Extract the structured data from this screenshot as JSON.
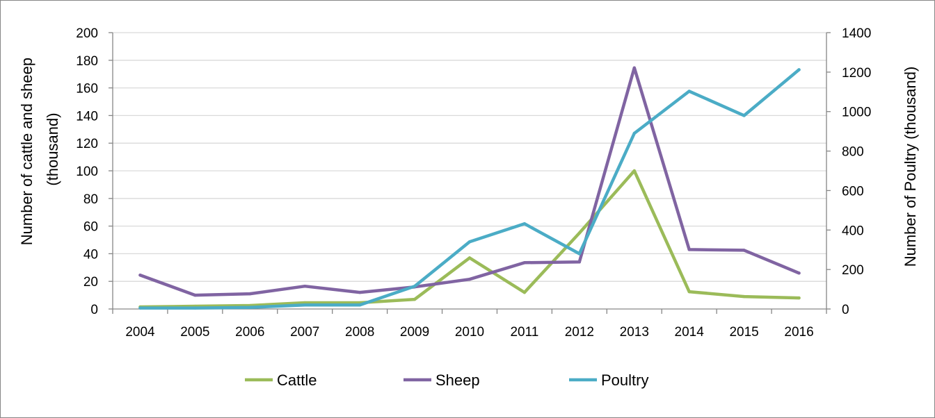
{
  "chart_data": {
    "type": "line",
    "categories": [
      "2004",
      "2005",
      "2006",
      "2007",
      "2008",
      "2009",
      "2010",
      "2011",
      "2012",
      "2013",
      "2014",
      "2015",
      "2016"
    ],
    "series": [
      {
        "name": "Cattle",
        "axis": "left",
        "color": "#9BBB59",
        "values": [
          1.5,
          2,
          2.5,
          4.5,
          4.5,
          7,
          37,
          12,
          55,
          100,
          12.5,
          9,
          8
        ]
      },
      {
        "name": "Sheep",
        "axis": "left",
        "color": "#8064A2",
        "values": [
          24.5,
          10,
          11,
          16.5,
          12,
          16,
          21.5,
          33.5,
          34,
          174.5,
          43,
          42.5,
          26
        ]
      },
      {
        "name": "Poultry",
        "axis": "right",
        "color": "#4BACC6",
        "values": [
          5,
          5,
          8,
          20,
          20,
          115,
          340,
          432,
          280,
          890,
          1103,
          980,
          1212
        ]
      }
    ],
    "y_left": {
      "label_lines": [
        "Number of cattle and sheep",
        "(thousand)"
      ],
      "ylim": [
        0,
        200
      ],
      "ticks": [
        "0",
        "20",
        "40",
        "60",
        "80",
        "100",
        "120",
        "140",
        "160",
        "180",
        "200"
      ]
    },
    "y_right": {
      "label": "Number of Poultry  (thousand)",
      "ylim": [
        0,
        1400
      ],
      "ticks": [
        "0",
        "200",
        "400",
        "600",
        "800",
        "1000",
        "1200",
        "1400"
      ]
    },
    "grid": true,
    "legend": "bottom"
  }
}
